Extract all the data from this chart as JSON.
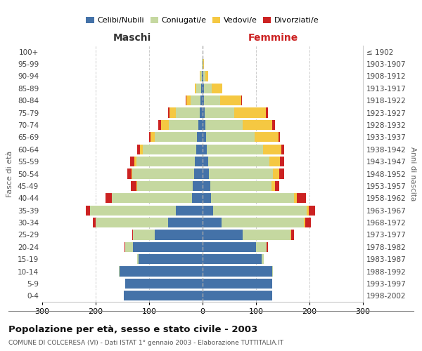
{
  "age_groups": [
    "0-4",
    "5-9",
    "10-14",
    "15-19",
    "20-24",
    "25-29",
    "30-34",
    "35-39",
    "40-44",
    "45-49",
    "50-54",
    "55-59",
    "60-64",
    "65-69",
    "70-74",
    "75-79",
    "80-84",
    "85-89",
    "90-94",
    "95-99",
    "100+"
  ],
  "birth_years": [
    "1998-2002",
    "1993-1997",
    "1988-1992",
    "1983-1987",
    "1978-1982",
    "1973-1977",
    "1968-1972",
    "1963-1967",
    "1958-1962",
    "1953-1957",
    "1948-1952",
    "1943-1947",
    "1938-1942",
    "1933-1937",
    "1928-1932",
    "1923-1927",
    "1918-1922",
    "1913-1917",
    "1908-1912",
    "1903-1907",
    "≤ 1902"
  ],
  "males": {
    "celibe": [
      148,
      145,
      155,
      120,
      130,
      90,
      65,
      50,
      20,
      18,
      16,
      14,
      12,
      10,
      8,
      5,
      4,
      2,
      1,
      0,
      0
    ],
    "coniugato": [
      0,
      0,
      1,
      3,
      15,
      40,
      135,
      160,
      150,
      105,
      115,
      110,
      100,
      80,
      55,
      45,
      18,
      10,
      3,
      1,
      0
    ],
    "vedovo": [
      0,
      0,
      0,
      0,
      0,
      0,
      0,
      0,
      0,
      1,
      2,
      3,
      5,
      8,
      15,
      12,
      8,
      3,
      1,
      0,
      0
    ],
    "divorziato": [
      0,
      0,
      0,
      0,
      1,
      2,
      5,
      8,
      12,
      10,
      8,
      8,
      5,
      2,
      5,
      3,
      1,
      0,
      0,
      0,
      0
    ]
  },
  "females": {
    "nubile": [
      130,
      130,
      130,
      110,
      100,
      75,
      35,
      20,
      16,
      14,
      12,
      10,
      8,
      7,
      5,
      4,
      3,
      2,
      1,
      0,
      0
    ],
    "coniugata": [
      0,
      0,
      1,
      5,
      20,
      90,
      155,
      175,
      155,
      115,
      120,
      115,
      105,
      90,
      70,
      55,
      30,
      15,
      4,
      1,
      0
    ],
    "vedova": [
      0,
      0,
      0,
      0,
      0,
      1,
      2,
      4,
      5,
      6,
      12,
      20,
      35,
      45,
      55,
      60,
      40,
      20,
      5,
      1,
      0
    ],
    "divorziata": [
      0,
      0,
      0,
      0,
      2,
      5,
      10,
      12,
      18,
      8,
      8,
      8,
      5,
      3,
      5,
      3,
      1,
      0,
      0,
      0,
      0
    ]
  },
  "color_celibe": "#4472a8",
  "color_coniugato": "#c5d8a0",
  "color_vedovo": "#f5c842",
  "color_divorziato": "#cc2222",
  "xlim": 300,
  "title": "Popolazione per età, sesso e stato civile - 2003",
  "subtitle": "COMUNE DI COLCERESA (VI) - Dati ISTAT 1° gennaio 2003 - Elaborazione TUTTITALIA.IT",
  "ylabel_left": "Fasce di età",
  "ylabel_right": "Anni di nascita",
  "xlabel_left": "Maschi",
  "xlabel_right": "Femmine",
  "background_color": "#ffffff",
  "grid_color": "#cccccc"
}
